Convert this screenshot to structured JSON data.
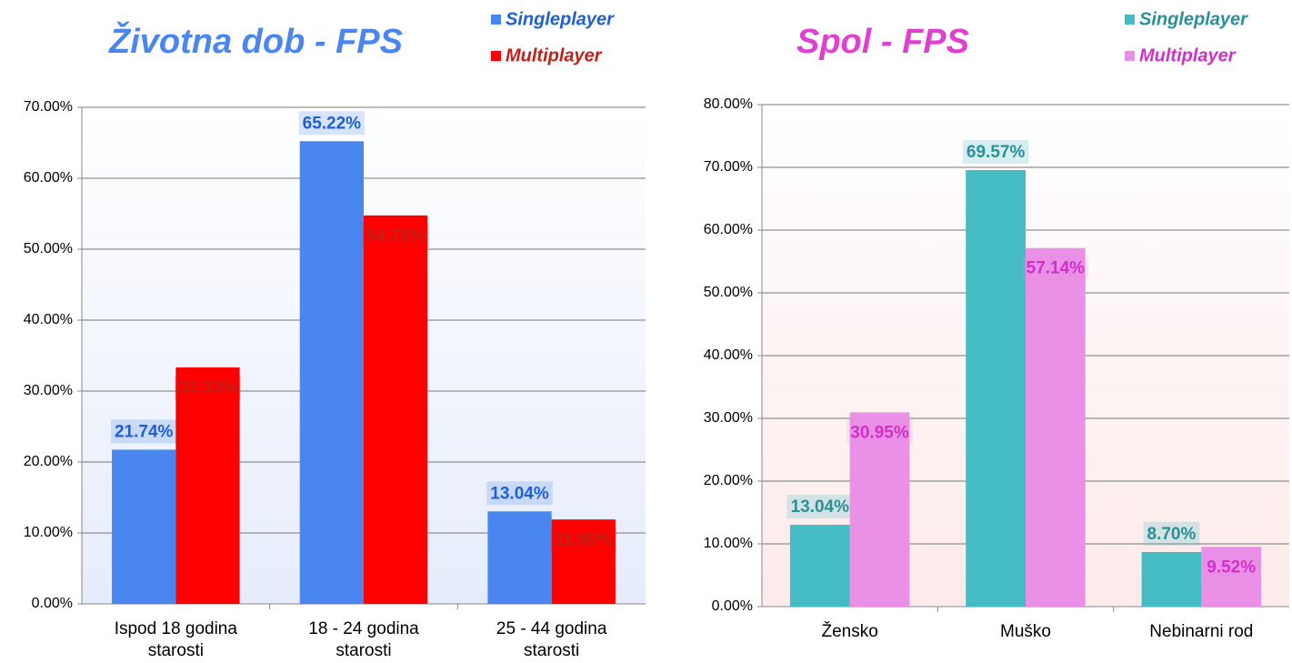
{
  "chart_data": [
    {
      "type": "bar",
      "title": "Životna dob - FPS",
      "title_color": "#4a86f0",
      "categories": [
        "Ispod 18 godina starosti",
        "18 - 24 godina starosti",
        "25 - 44 godina starosti"
      ],
      "series": [
        {
          "name": "Singleplayer",
          "color": "#4a86f0",
          "label_color": "#1f5fd6",
          "values": [
            21.74,
            65.22,
            13.04
          ],
          "value_labels": [
            "21.74%",
            "65.22%",
            "13.04%"
          ]
        },
        {
          "name": "Multiplayer",
          "color": "#ff0000",
          "label_color": "#c0201a",
          "values": [
            33.33,
            54.76,
            11.9
          ],
          "value_labels": [
            "33.33%",
            "54.76%",
            "11.90%"
          ]
        }
      ],
      "ylim": [
        0,
        70
      ],
      "yticks": [
        {
          "value": 0,
          "label": "0.00%"
        },
        {
          "value": 10,
          "label": "10.00%"
        },
        {
          "value": 20,
          "label": "20.00%"
        },
        {
          "value": 30,
          "label": "30.00%"
        },
        {
          "value": 40,
          "label": "40.00%"
        },
        {
          "value": 50,
          "label": "50.00%"
        },
        {
          "value": 60,
          "label": "60.00%"
        },
        {
          "value": 70,
          "label": "70.00%"
        }
      ],
      "grid": true,
      "background": "#e6ecfb",
      "legend": "upper right"
    },
    {
      "type": "bar",
      "title": "Spol - FPS",
      "title_color": "#e040d0",
      "categories": [
        "Žensko",
        "Muško",
        "Nebinarni rod"
      ],
      "series": [
        {
          "name": "Singleplayer",
          "color": "#45bcc4",
          "label_color": "#2a9098",
          "values": [
            13.04,
            69.57,
            8.7
          ],
          "value_labels": [
            "13.04%",
            "69.57%",
            "8.70%"
          ]
        },
        {
          "name": "Multiplayer",
          "color": "#ea90e6",
          "label_color": "#d030c8",
          "values": [
            30.95,
            57.14,
            9.52
          ],
          "value_labels": [
            "30.95%",
            "57.14%",
            "9.52%"
          ]
        }
      ],
      "ylim": [
        0,
        80
      ],
      "yticks": [
        {
          "value": 0,
          "label": "0.00%"
        },
        {
          "value": 10,
          "label": "10.00%"
        },
        {
          "value": 20,
          "label": "20.00%"
        },
        {
          "value": 30,
          "label": "30.00%"
        },
        {
          "value": 40,
          "label": "40.00%"
        },
        {
          "value": 50,
          "label": "50.00%"
        },
        {
          "value": 60,
          "label": "60.00%"
        },
        {
          "value": 70,
          "label": "70.00%"
        },
        {
          "value": 80,
          "label": "80.00%"
        }
      ],
      "grid": true,
      "background": "#fdeaea",
      "legend": "upper right"
    }
  ]
}
